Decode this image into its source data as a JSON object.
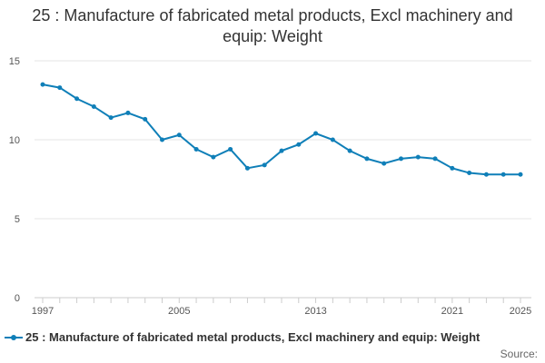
{
  "chart_data": {
    "type": "line",
    "title": "25 : Manufacture of fabricated metal products, Excl machinery and equip: Weight",
    "xlabel": "",
    "ylabel": "",
    "ylim": [
      0,
      15
    ],
    "yticks": [
      0,
      5,
      10,
      15
    ],
    "xticks": [
      1997,
      2005,
      2013,
      2021,
      2025
    ],
    "grid": true,
    "legend_position": "bottom",
    "color": "#0f7fb8",
    "x": [
      1997,
      1998,
      1999,
      2000,
      2001,
      2002,
      2003,
      2004,
      2005,
      2006,
      2007,
      2008,
      2009,
      2010,
      2011,
      2012,
      2013,
      2014,
      2015,
      2016,
      2017,
      2018,
      2019,
      2020,
      2021,
      2022,
      2023,
      2024,
      2025
    ],
    "series": [
      {
        "name": "25 : Manufacture of fabricated metal products, Excl machinery and equip: Weight",
        "values": [
          13.5,
          13.3,
          12.6,
          12.1,
          11.4,
          11.7,
          11.3,
          10.0,
          10.3,
          9.4,
          8.9,
          9.4,
          8.2,
          8.4,
          9.3,
          9.7,
          10.4,
          10.0,
          9.3,
          8.8,
          8.5,
          8.8,
          8.9,
          8.8,
          8.2,
          7.9,
          7.8,
          7.8,
          7.8
        ]
      }
    ]
  },
  "source_label": "Source:"
}
